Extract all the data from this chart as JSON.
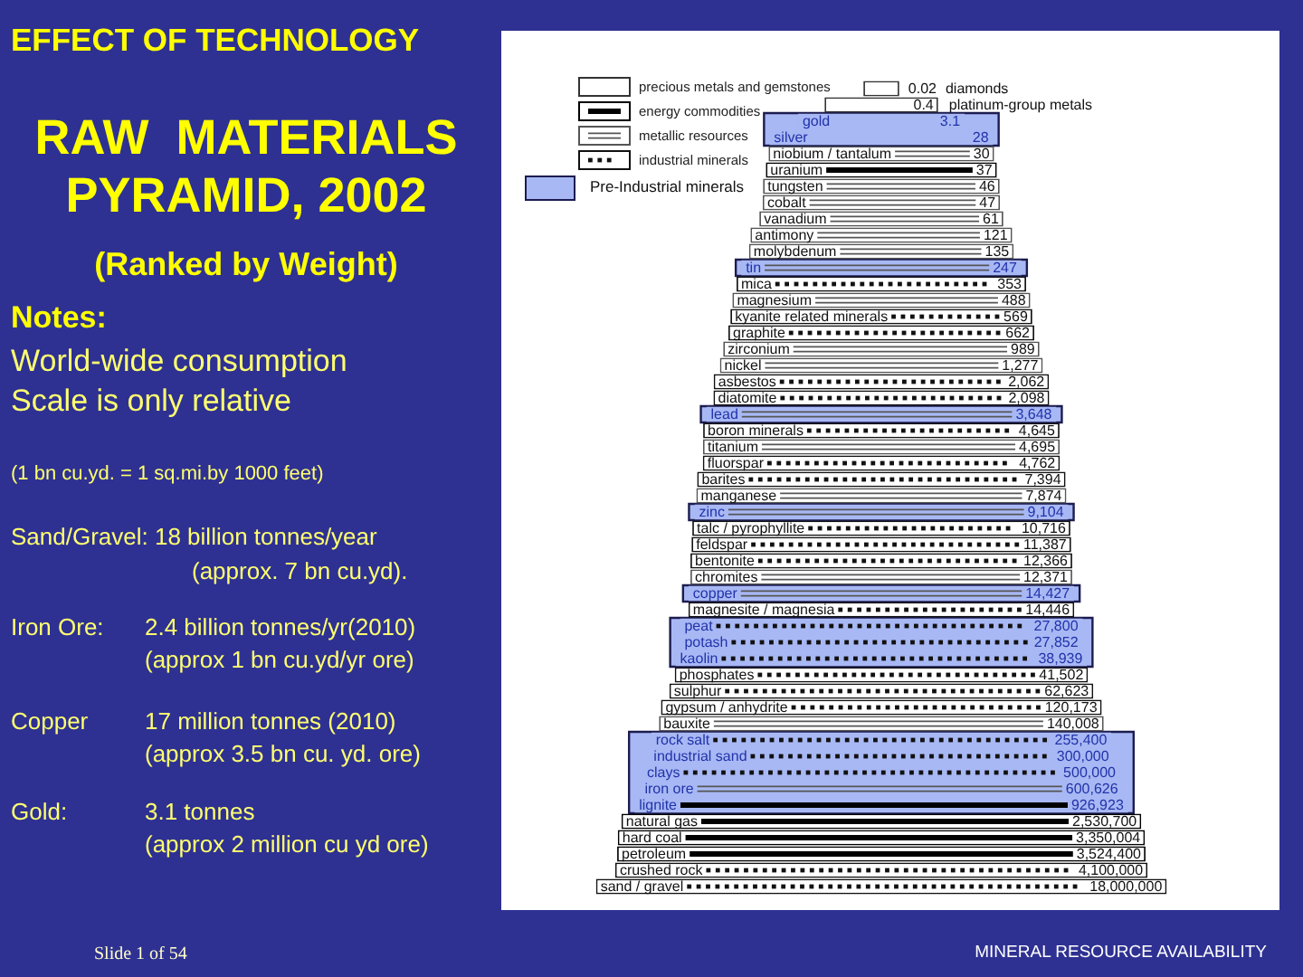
{
  "chart_data": {
    "type": "other",
    "title": "RAW  MATERIALS PYRAMID, 2002",
    "subtitle": "(Ranked by Weight)",
    "categories": [
      "diamonds",
      "platinum-group metals",
      "gold",
      "silver",
      "niobium / tantalum",
      "uranium",
      "tungsten",
      "cobalt",
      "vanadium",
      "antimony",
      "molybdenum",
      "tin",
      "mica",
      "magnesium",
      "kyanite related minerals",
      "graphite",
      "zirconium",
      "nickel",
      "asbestos",
      "diatomite",
      "lead",
      "boron minerals",
      "titanium",
      "fluorspar",
      "barites",
      "manganese",
      "zinc",
      "talc / pyrophyllite",
      "feldspar",
      "bentonite",
      "chromites",
      "copper",
      "magnesite / magnesia",
      "peat",
      "potash",
      "kaolin",
      "phosphates",
      "sulphur",
      "gypsum / anhydrite",
      "bauxite",
      "rock salt",
      "industrial sand",
      "clays",
      "iron ore",
      "lignite",
      "natural gas",
      "hard coal",
      "petroleum",
      "crushed rock",
      "sand / gravel"
    ],
    "series": [
      {
        "name": "precious metals and gemstones",
        "color": "#333333",
        "values": [
          0.02,
          0.4,
          3.1,
          28,
          null,
          null,
          null,
          null,
          null,
          null,
          null,
          null,
          null,
          null,
          null,
          null,
          null,
          null,
          null,
          null,
          null,
          null,
          null,
          null,
          null,
          null,
          null,
          null,
          null,
          null,
          null,
          null,
          null,
          null,
          null,
          null,
          null,
          null,
          null,
          null,
          null,
          null,
          null,
          null,
          null,
          null,
          null,
          null,
          null,
          null
        ],
        "value_labels": [
          "0.02",
          "0.4",
          "3.1",
          "28",
          null,
          null,
          null,
          null,
          null,
          null,
          null,
          null,
          null,
          null,
          null,
          null,
          null,
          null,
          null,
          null,
          null,
          null,
          null,
          null,
          null,
          null,
          null,
          null,
          null,
          null,
          null,
          null,
          null,
          null,
          null,
          null,
          null,
          null,
          null,
          null,
          null,
          null,
          null,
          null,
          null,
          null,
          null,
          null,
          null,
          null
        ],
        "colors": [
          null,
          null,
          "#a8b8f4",
          "#a8b8f4",
          null,
          null,
          null,
          null,
          null,
          null,
          null,
          null,
          null,
          null,
          null,
          null,
          null,
          null,
          null,
          null,
          null,
          null,
          null,
          null,
          null,
          null,
          null,
          null,
          null,
          null,
          null,
          null,
          null,
          null,
          null,
          null,
          null,
          null,
          null,
          null,
          null,
          null,
          null,
          null,
          null,
          null,
          null,
          null,
          null,
          null
        ]
      },
      {
        "name": "energy commodities",
        "color": "#000000",
        "values": [
          null,
          null,
          null,
          null,
          null,
          37,
          null,
          null,
          null,
          null,
          null,
          null,
          null,
          null,
          null,
          null,
          null,
          null,
          null,
          null,
          null,
          null,
          null,
          null,
          null,
          null,
          null,
          null,
          null,
          null,
          null,
          null,
          null,
          null,
          null,
          null,
          null,
          null,
          null,
          null,
          null,
          null,
          null,
          null,
          926923,
          2530700,
          3350004,
          3524400,
          null,
          null
        ],
        "value_labels": [
          null,
          null,
          null,
          null,
          null,
          "37",
          null,
          null,
          null,
          null,
          null,
          null,
          null,
          null,
          null,
          null,
          null,
          null,
          null,
          null,
          null,
          null,
          null,
          null,
          null,
          null,
          null,
          null,
          null,
          null,
          null,
          null,
          null,
          null,
          null,
          null,
          null,
          null,
          null,
          null,
          null,
          null,
          null,
          null,
          "926,923",
          "2,530,700",
          "3,350,004",
          "3,524,400",
          null,
          null
        ],
        "colors": [
          null,
          null,
          null,
          null,
          null,
          null,
          null,
          null,
          null,
          null,
          null,
          null,
          null,
          null,
          null,
          null,
          null,
          null,
          null,
          null,
          null,
          null,
          null,
          null,
          null,
          null,
          null,
          null,
          null,
          null,
          null,
          null,
          null,
          null,
          null,
          null,
          null,
          null,
          null,
          null,
          null,
          null,
          null,
          null,
          "#a8b8f4",
          null,
          null,
          null,
          null,
          null
        ]
      },
      {
        "name": "metallic resources",
        "color": "#555555",
        "values": [
          null,
          null,
          null,
          null,
          30,
          null,
          46,
          47,
          61,
          121,
          135,
          247,
          null,
          488,
          null,
          null,
          989,
          1277,
          null,
          null,
          3648,
          null,
          4695,
          null,
          null,
          7874,
          9104,
          null,
          null,
          null,
          12371,
          14427,
          null,
          null,
          null,
          null,
          null,
          null,
          null,
          140008,
          null,
          null,
          null,
          600626,
          null,
          null,
          null,
          null,
          null,
          null
        ],
        "value_labels": [
          null,
          null,
          null,
          null,
          "30",
          null,
          "46",
          "47",
          "61",
          "121",
          "135",
          "247",
          null,
          "488",
          null,
          null,
          "989",
          "1,277",
          null,
          null,
          "3,648",
          null,
          "4,695",
          null,
          null,
          "7,874",
          "9,104",
          null,
          null,
          null,
          "12,371",
          "14,427",
          null,
          null,
          null,
          null,
          null,
          null,
          null,
          "140,008",
          null,
          null,
          null,
          "600,626",
          null,
          null,
          null,
          null,
          null,
          null
        ],
        "colors": [
          null,
          null,
          null,
          null,
          null,
          null,
          null,
          null,
          null,
          null,
          null,
          "#a8b8f4",
          null,
          null,
          null,
          null,
          null,
          null,
          null,
          null,
          "#a8b8f4",
          null,
          null,
          null,
          null,
          null,
          "#a8b8f4",
          null,
          null,
          null,
          null,
          "#a8b8f4",
          null,
          null,
          null,
          null,
          null,
          null,
          null,
          null,
          null,
          null,
          null,
          "#a8b8f4",
          null,
          null,
          null,
          null,
          null,
          null
        ]
      },
      {
        "name": "industrial minerals",
        "color": "#111111",
        "values": [
          null,
          null,
          null,
          null,
          null,
          null,
          null,
          null,
          null,
          null,
          null,
          null,
          353,
          null,
          569,
          662,
          null,
          null,
          2062,
          2098,
          null,
          4645,
          null,
          4762,
          7394,
          null,
          null,
          10716,
          11387,
          12366,
          null,
          null,
          14446,
          27800,
          27852,
          38939,
          41502,
          62623,
          120173,
          null,
          255400,
          300000,
          500000,
          null,
          null,
          null,
          null,
          null,
          4100000,
          18000000
        ],
        "value_labels": [
          null,
          null,
          null,
          null,
          null,
          null,
          null,
          null,
          null,
          null,
          null,
          null,
          "353",
          null,
          "569",
          "662",
          null,
          null,
          "2,062",
          "2,098",
          null,
          "4,645",
          null,
          "4,762",
          "7,394",
          null,
          null,
          "10,716",
          "11,387",
          "12,366",
          null,
          null,
          "14,446",
          "27,800",
          "27,852",
          "38,939",
          "41,502",
          "62,623",
          "120,173",
          null,
          "255,400",
          "300,000",
          "500,000",
          null,
          null,
          null,
          null,
          null,
          "4,100,000",
          "18,000,000"
        ],
        "colors": [
          null,
          null,
          null,
          null,
          null,
          null,
          null,
          null,
          null,
          null,
          null,
          null,
          null,
          null,
          null,
          null,
          null,
          null,
          null,
          null,
          null,
          null,
          null,
          null,
          null,
          null,
          null,
          null,
          null,
          null,
          null,
          null,
          null,
          "#a8b8f4",
          "#a8b8f4",
          "#a8b8f4",
          null,
          null,
          null,
          null,
          "#a8b8f4",
          "#a8b8f4",
          "#a8b8f4",
          null,
          null,
          null,
          null,
          null,
          null,
          null
        ]
      }
    ],
    "legend": "top left",
    "annotations": [
      "EFFECT OF TECHNOLOGY",
      "Notes:",
      "World-wide consumption",
      "Scale is only relative",
      "(1 bn cu.yd. = 1 sq.mi.by 1000 feet)",
      "Sand/Gravel: 18 billion tonnes/year",
      "(approx. 7 bn cu.yd).",
      "Iron Ore:",
      "2.4 billion tonnes/yr(2010)",
      "(approx 1 bn cu.yd/yr ore)",
      "Copper",
      "17 million tonnes (2010)",
      "(approx 3.5 bn cu. yd. ore)",
      "Gold:",
      "3.1 tonnes",
      "(approx 2 million cu yd ore)",
      "Slide 1 of 54",
      "MINERAL RESOURCE AVAILABILITY",
      "Pre-Industrial minerals"
    ]
  }
}
